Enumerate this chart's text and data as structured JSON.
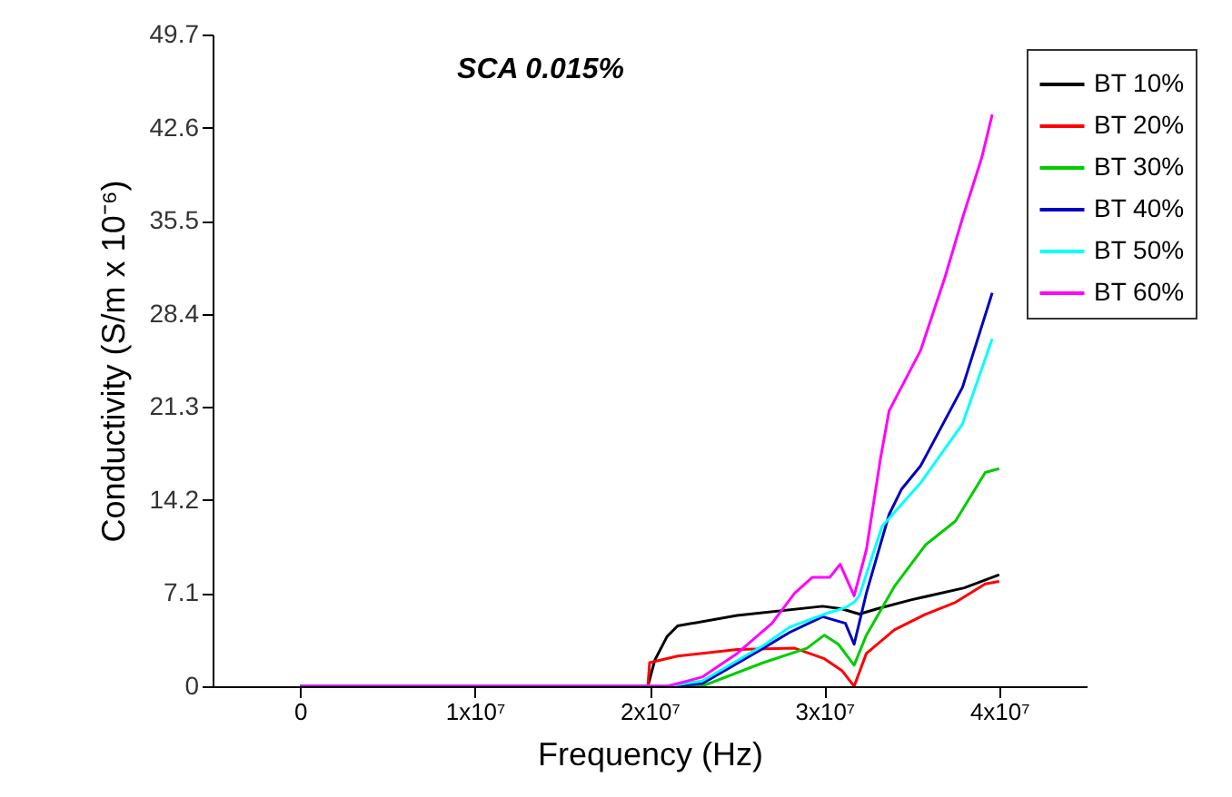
{
  "chart_data": {
    "type": "line",
    "title": "SCA 0.015%",
    "xlabel": "Frequency (Hz)",
    "ylabel": "Conductivity (S/m x 10⁻⁶)",
    "xlim": [
      -5000000,
      45000000
    ],
    "xticks": [
      0,
      {
        "value": 10000000,
        "label": "1x10⁷"
      },
      {
        "value": 20000000,
        "label": "2x10⁷"
      },
      {
        "value": 30000000,
        "label": "3x10⁷"
      },
      {
        "value": 40000000,
        "label": "4x10⁷"
      }
    ],
    "ylim": [
      0,
      49.7
    ],
    "yticks": [
      0,
      7.1,
      14.2,
      21.3,
      28.4,
      35.5,
      42.6,
      49.7
    ],
    "grid": false,
    "legend": "top right",
    "marker": "none",
    "line_style": "solid",
    "series": [
      {
        "name": "BT 10%",
        "color": "#000000",
        "x": [
          0,
          19900000,
          20300000,
          21000000,
          21600000,
          25000000,
          29900000,
          31000000,
          32000000,
          33000000,
          35000000,
          38000000,
          40000000
        ],
        "values": [
          0,
          0,
          2.0,
          3.8,
          4.6,
          5.4,
          6.1,
          5.9,
          5.5,
          5.9,
          6.6,
          7.5,
          8.5
        ]
      },
      {
        "name": "BT 20%",
        "color": "#ff0000",
        "x": [
          0,
          19900000,
          20000000,
          21600000,
          25000000,
          28300000,
          30000000,
          31000000,
          31700000,
          32400000,
          34000000,
          35800000,
          37500000,
          39200000,
          40000000
        ],
        "values": [
          0,
          0,
          1.8,
          2.3,
          2.8,
          2.9,
          2.1,
          1.2,
          0,
          2.5,
          4.3,
          5.5,
          6.4,
          7.8,
          8.0
        ]
      },
      {
        "name": "BT 30%",
        "color": "#00cc00",
        "x": [
          0,
          23000000,
          26500000,
          29000000,
          30000000,
          30800000,
          31700000,
          32400000,
          34000000,
          35800000,
          37500000,
          39200000,
          40000000
        ],
        "values": [
          0,
          0,
          1.8,
          2.9,
          3.9,
          3.2,
          1.6,
          3.9,
          7.6,
          10.8,
          12.6,
          16.3,
          16.6
        ]
      },
      {
        "name": "BT 40%",
        "color": "#0000c0",
        "x": [
          0,
          21000000,
          23000000,
          26500000,
          28000000,
          29900000,
          31200000,
          31700000,
          32400000,
          33700000,
          34400000,
          35500000,
          37900000,
          39600000
        ],
        "values": [
          0,
          0,
          0.2,
          2.9,
          4.1,
          5.3,
          4.8,
          3.2,
          7.1,
          13.1,
          15.0,
          16.8,
          22.8,
          30.0
        ]
      },
      {
        "name": "BT 50%",
        "color": "#00ffff",
        "x": [
          0,
          21000000,
          23000000,
          26500000,
          28000000,
          30000000,
          31200000,
          31700000,
          32000000,
          33300000,
          35500000,
          37900000,
          39600000
        ],
        "values": [
          0,
          0,
          0.4,
          3.1,
          4.5,
          5.5,
          6.0,
          6.4,
          6.9,
          12.2,
          15.5,
          20.0,
          26.5
        ]
      },
      {
        "name": "BT 60%",
        "color": "#ff00ff",
        "x": [
          0,
          21000000,
          23000000,
          25000000,
          27000000,
          28300000,
          29300000,
          30300000,
          30900000,
          31700000,
          32400000,
          33200000,
          33700000,
          35500000,
          36900000,
          37900000,
          39000000,
          39600000
        ],
        "values": [
          0,
          0,
          0.7,
          2.5,
          4.8,
          7.1,
          8.3,
          8.3,
          9.3,
          6.9,
          10.4,
          17.3,
          21.0,
          25.6,
          31.2,
          35.7,
          40.3,
          43.6
        ]
      }
    ]
  }
}
